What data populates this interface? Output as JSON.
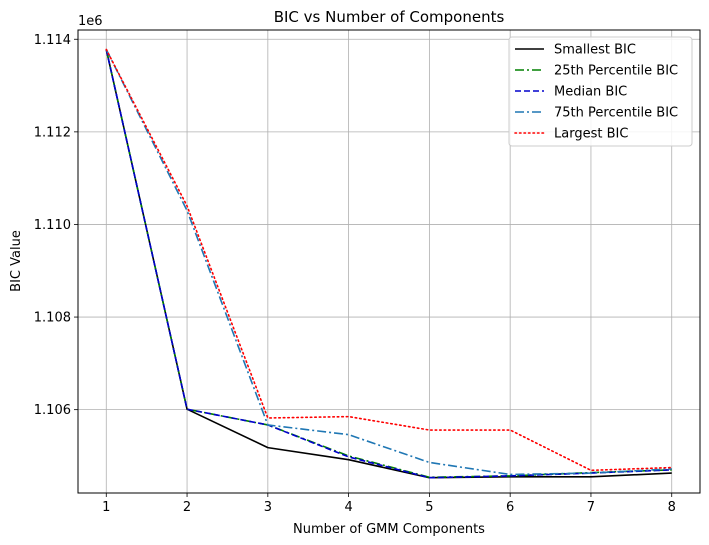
{
  "chart_data": {
    "type": "line",
    "title": "BIC vs Number of Components",
    "xlabel": "Number of GMM Components",
    "ylabel": "BIC Value",
    "y_offset_label": "1e6",
    "x": [
      1,
      2,
      3,
      4,
      5,
      6,
      7,
      8
    ],
    "xlim": [
      0.65,
      8.35
    ],
    "ylim": [
      1.1042,
      1.1142
    ],
    "x_ticks": [
      "1",
      "2",
      "3",
      "4",
      "5",
      "6",
      "7",
      "8"
    ],
    "y_ticks": [
      {
        "value": 1.106,
        "label": "1.106"
      },
      {
        "value": 1.108,
        "label": "1.108"
      },
      {
        "value": 1.11,
        "label": "1.110"
      },
      {
        "value": 1.112,
        "label": "1.112"
      },
      {
        "value": 1.114,
        "label": "1.114"
      }
    ],
    "grid": true,
    "legend_position": "top-right",
    "series": [
      {
        "name": "Smallest BIC",
        "color": "#000000",
        "style": "solid",
        "values": [
          1.11378,
          1.10601,
          1.10518,
          1.10492,
          1.10453,
          1.10455,
          1.10455,
          1.10463
        ]
      },
      {
        "name": "25th Percentile BIC",
        "color": "#008000",
        "style": "dashdot",
        "values": [
          1.11378,
          1.10601,
          1.10567,
          1.105,
          1.10454,
          1.10457,
          1.10464,
          1.1047
        ]
      },
      {
        "name": "Median BIC",
        "color": "#0000cc",
        "style": "dashed",
        "values": [
          1.11378,
          1.10601,
          1.10567,
          1.10498,
          1.10453,
          1.10457,
          1.10463,
          1.1047
        ]
      },
      {
        "name": "75th Percentile BIC",
        "color": "#1f77b4",
        "style": "dashdot",
        "values": [
          1.11378,
          1.1103,
          1.10567,
          1.10546,
          1.10486,
          1.1046,
          1.10463,
          1.10472
        ]
      },
      {
        "name": "Largest BIC",
        "color": "#ff0000",
        "style": "dotted",
        "values": [
          1.11378,
          1.1104,
          1.10582,
          1.10585,
          1.10556,
          1.10556,
          1.10469,
          1.10475
        ]
      }
    ]
  }
}
